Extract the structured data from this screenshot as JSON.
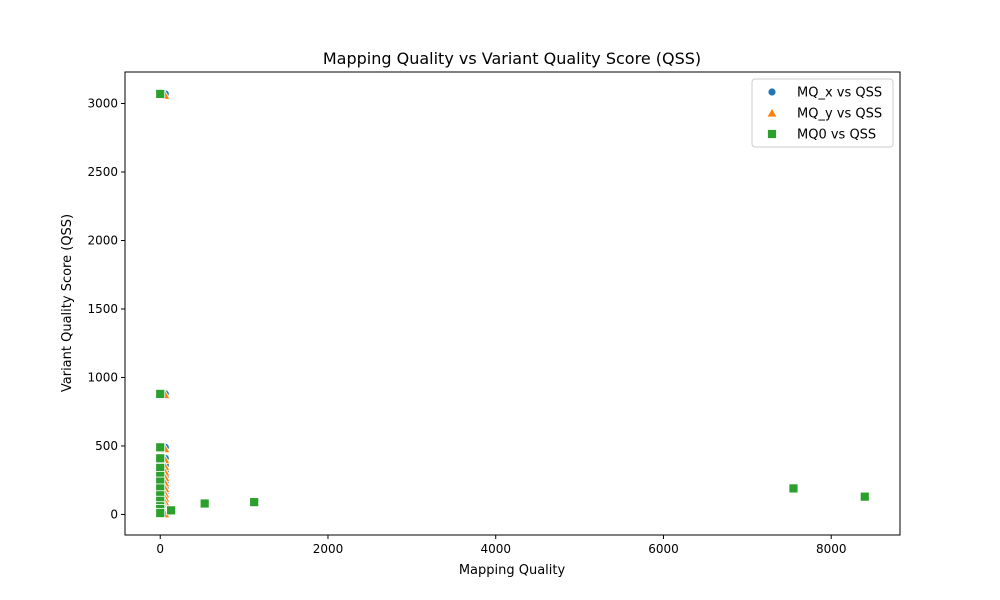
{
  "chart_data": {
    "type": "scatter",
    "title": "Mapping Quality vs Variant Quality Score (QSS)",
    "xlabel": "Mapping Quality",
    "ylabel": "Variant Quality Score (QSS)",
    "xlim": [
      -420,
      8820
    ],
    "ylim": [
      -150,
      3230
    ],
    "xticks": [
      0,
      2000,
      4000,
      6000,
      8000
    ],
    "yticks": [
      0,
      500,
      1000,
      1500,
      2000,
      2500,
      3000
    ],
    "grid": false,
    "legend_position": "top-right",
    "series": [
      {
        "name": "MQ_x vs QSS",
        "marker": "circle",
        "color": "#1f77b4",
        "points": [
          [
            60,
            3070
          ],
          [
            60,
            880
          ],
          [
            60,
            490
          ],
          [
            60,
            410
          ],
          [
            60,
            360
          ],
          [
            60,
            320
          ],
          [
            60,
            280
          ],
          [
            60,
            240
          ],
          [
            60,
            200
          ],
          [
            60,
            160
          ],
          [
            60,
            130
          ],
          [
            60,
            100
          ],
          [
            60,
            70
          ],
          [
            60,
            45
          ],
          [
            60,
            25
          ],
          [
            60,
            10
          ],
          [
            60,
            0
          ]
        ]
      },
      {
        "name": "MQ_y vs QSS",
        "marker": "triangle",
        "color": "#ff7f0e",
        "points": [
          [
            55,
            3060
          ],
          [
            55,
            875
          ],
          [
            55,
            480
          ],
          [
            55,
            400
          ],
          [
            55,
            350
          ],
          [
            55,
            310
          ],
          [
            55,
            270
          ],
          [
            55,
            230
          ],
          [
            55,
            190
          ],
          [
            55,
            150
          ],
          [
            55,
            120
          ],
          [
            55,
            90
          ],
          [
            55,
            60
          ],
          [
            55,
            40
          ],
          [
            55,
            20
          ],
          [
            55,
            5
          ]
        ]
      },
      {
        "name": "MQ0 vs QSS",
        "marker": "square",
        "color": "#2ca02c",
        "points": [
          [
            0,
            3070
          ],
          [
            0,
            880
          ],
          [
            0,
            490
          ],
          [
            0,
            410
          ],
          [
            0,
            340
          ],
          [
            0,
            280
          ],
          [
            0,
            240
          ],
          [
            0,
            190
          ],
          [
            0,
            140
          ],
          [
            0,
            100
          ],
          [
            0,
            60
          ],
          [
            0,
            40
          ],
          [
            0,
            10
          ],
          [
            130,
            30
          ],
          [
            530,
            80
          ],
          [
            1120,
            90
          ],
          [
            7550,
            190
          ],
          [
            8400,
            130
          ]
        ]
      }
    ]
  }
}
